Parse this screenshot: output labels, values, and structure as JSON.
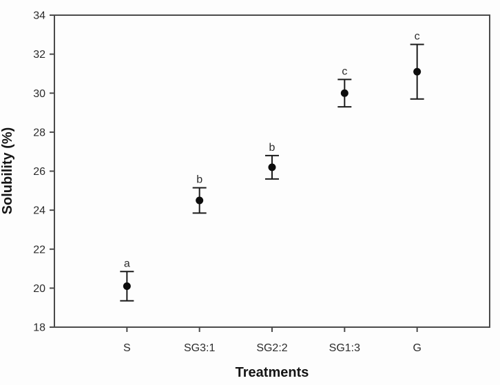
{
  "chart_data": {
    "type": "scatter",
    "title": "",
    "xlabel": "Treatments",
    "ylabel": "Solubility (%)",
    "categories": [
      "S",
      "SG3:1",
      "SG2:2",
      "SG1:3",
      "G"
    ],
    "values": [
      20.1,
      24.5,
      26.2,
      30.0,
      31.1
    ],
    "errors": [
      0.75,
      0.65,
      0.6,
      0.7,
      1.4
    ],
    "sig_letters": [
      "a",
      "b",
      "b",
      "c",
      "c"
    ],
    "ylim": [
      18,
      34
    ],
    "yticks": [
      18,
      20,
      22,
      24,
      26,
      28,
      30,
      32,
      34
    ],
    "ytick_step": 2,
    "grid": false,
    "legend": "none",
    "marker": "filled-circle",
    "error_bar_style": "vertical-with-caps",
    "colors": {
      "point": "#0d0d0d",
      "error_bar": "#1a1a1a",
      "axis": "#4a4a4a",
      "tick_text": "#2b2b2b",
      "label_text": "#151515",
      "background": "#fdfdfd"
    }
  }
}
